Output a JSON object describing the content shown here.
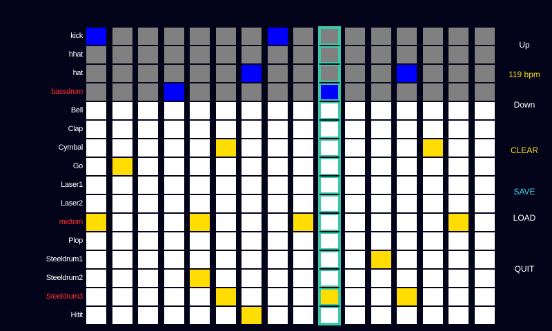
{
  "colors": {
    "background": "#03031a",
    "drum_inactive": "#808080",
    "drum_active": "#0000ff",
    "inst_inactive": "#ffffff",
    "inst_active": "#ffdd00",
    "playhead": "#3cc8a8",
    "label_normal": "#ffffff",
    "label_highlight": "#ff3030"
  },
  "steps": 16,
  "current_step": 9,
  "tracks": [
    {
      "name": "kick",
      "kind": "drum",
      "highlight": false,
      "active": [
        0,
        7
      ]
    },
    {
      "name": "hhat",
      "kind": "drum",
      "highlight": false,
      "active": []
    },
    {
      "name": "hat",
      "kind": "drum",
      "highlight": false,
      "active": [
        6,
        12
      ]
    },
    {
      "name": "bassdrum",
      "kind": "drum",
      "highlight": true,
      "active": [
        3,
        9
      ]
    },
    {
      "name": "Bell",
      "kind": "inst",
      "highlight": false,
      "active": []
    },
    {
      "name": "Clap",
      "kind": "inst",
      "highlight": false,
      "active": []
    },
    {
      "name": "Cymbal",
      "kind": "inst",
      "highlight": false,
      "active": [
        5,
        13
      ]
    },
    {
      "name": "Go",
      "kind": "inst",
      "highlight": false,
      "active": [
        1
      ]
    },
    {
      "name": "Laser1",
      "kind": "inst",
      "highlight": false,
      "active": []
    },
    {
      "name": "Laser2",
      "kind": "inst",
      "highlight": false,
      "active": []
    },
    {
      "name": "midtom",
      "kind": "inst",
      "highlight": true,
      "active": [
        0,
        4,
        8,
        14
      ]
    },
    {
      "name": "Plop",
      "kind": "inst",
      "highlight": false,
      "active": []
    },
    {
      "name": "Steeldrum1",
      "kind": "inst",
      "highlight": false,
      "active": [
        11
      ]
    },
    {
      "name": "Steeldrum2",
      "kind": "inst",
      "highlight": false,
      "active": [
        4
      ]
    },
    {
      "name": "Steeldrum3",
      "kind": "inst",
      "highlight": true,
      "active": [
        5,
        9,
        12
      ]
    },
    {
      "name": "Hitit",
      "kind": "inst",
      "highlight": false,
      "active": [
        6
      ]
    }
  ],
  "controls": {
    "up": "Up",
    "bpm": "119 bpm",
    "down": "Down",
    "clear": "CLEAR",
    "save": "SAVE",
    "load": "LOAD",
    "quit": "QUIT"
  }
}
